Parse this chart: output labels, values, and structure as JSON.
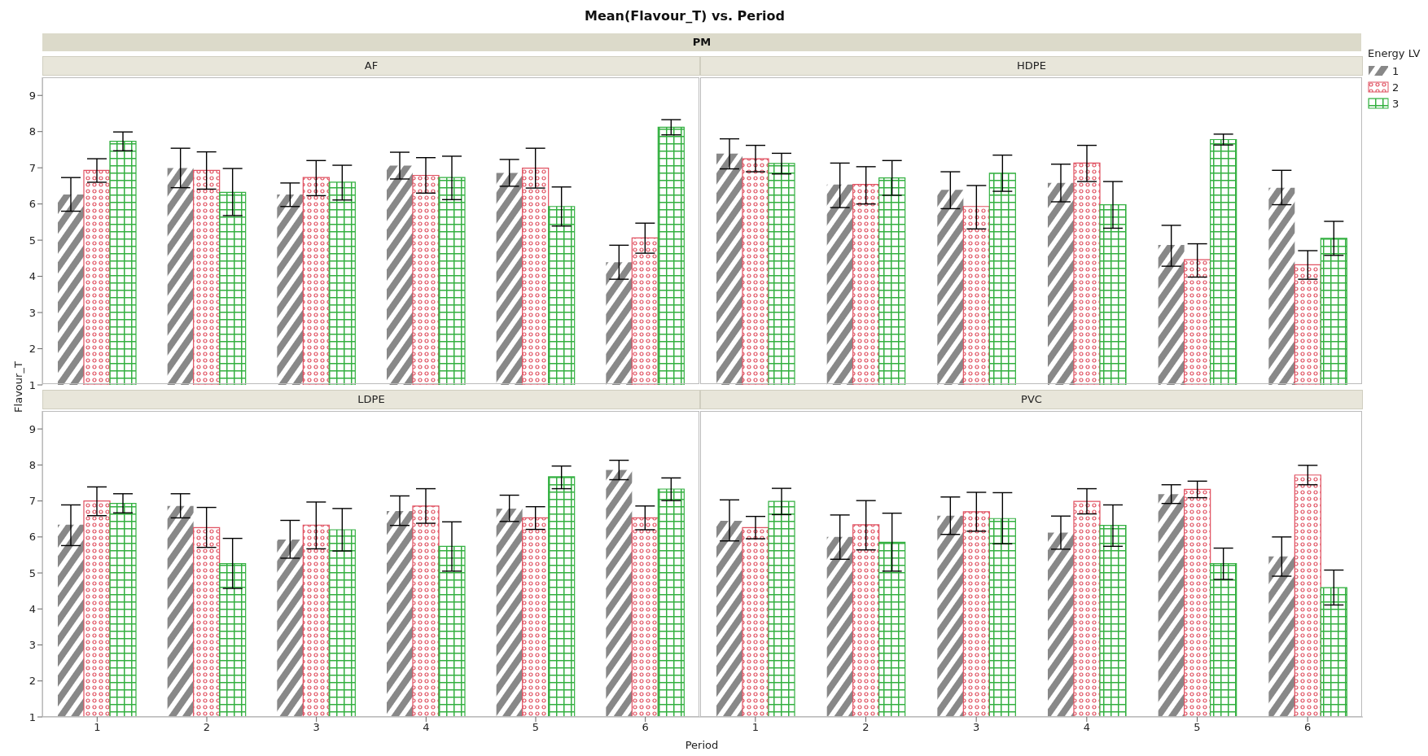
{
  "chart_data": [
    {
      "type": "bar",
      "title": "AF",
      "annotations": [
        "Mean(Flavour_T) vs. Period",
        "PM"
      ],
      "ylabel": "Flavour_T",
      "categories": [
        "1",
        "2",
        "3",
        "4",
        "5",
        "6"
      ],
      "ylim": [
        1,
        9.5
      ],
      "yticks": [
        1,
        2,
        3,
        4,
        5,
        6,
        7,
        8,
        9
      ],
      "tick_labels": "y",
      "series": [
        {
          "color": "#888888",
          "values": [
            6.26,
            6.99,
            6.26,
            7.06,
            6.86,
            4.39
          ],
          "errors": [
            [
              5.8,
              6.73
            ],
            [
              6.45,
              7.54
            ],
            [
              5.93,
              6.58
            ],
            [
              6.69,
              7.43
            ],
            [
              6.49,
              7.23
            ],
            [
              3.92,
              4.86
            ]
          ]
        },
        {
          "color": "#e05060",
          "values": [
            6.93,
            6.93,
            6.73,
            6.79,
            6.99,
            5.06
          ],
          "errors": [
            [
              6.6,
              7.25
            ],
            [
              6.41,
              7.44
            ],
            [
              6.23,
              7.2
            ],
            [
              6.3,
              7.28
            ],
            [
              6.44,
              7.54
            ],
            [
              4.64,
              5.47
            ]
          ]
        },
        {
          "color": "#33b040",
          "values": [
            7.73,
            6.32,
            6.6,
            6.73,
            5.93,
            8.12
          ],
          "errors": [
            [
              7.47,
              7.99
            ],
            [
              5.68,
              6.98
            ],
            [
              6.11,
              7.07
            ],
            [
              6.12,
              7.32
            ],
            [
              5.39,
              6.47
            ],
            [
              7.91,
              8.33
            ]
          ]
        }
      ]
    },
    {
      "type": "bar",
      "title": "HDPE",
      "legend": "right",
      "legend_title": "Energy LV",
      "categories": [
        "1",
        "2",
        "3",
        "4",
        "5",
        "6"
      ],
      "ylim": [
        1,
        9.5
      ],
      "yticks": [
        1,
        2,
        3,
        4,
        5,
        6,
        7,
        8,
        9
      ],
      "tick_labels": false,
      "series": [
        {
          "name": "1",
          "color": "#888888",
          "values": [
            7.39,
            6.54,
            6.39,
            6.58,
            4.87,
            6.45
          ],
          "errors": [
            [
              6.97,
              7.8
            ],
            [
              5.9,
              7.13
            ],
            [
              5.87,
              6.89
            ],
            [
              6.06,
              7.1
            ],
            [
              4.28,
              5.41
            ],
            [
              5.98,
              6.93
            ]
          ]
        },
        {
          "name": "2",
          "color": "#e05060",
          "values": [
            7.25,
            6.54,
            5.93,
            7.13,
            4.46,
            4.32
          ],
          "errors": [
            [
              6.89,
              7.62
            ],
            [
              6.0,
              7.03
            ],
            [
              5.31,
              6.51
            ],
            [
              6.62,
              7.62
            ],
            [
              3.98,
              4.9
            ],
            [
              3.92,
              4.71
            ]
          ]
        },
        {
          "name": "3",
          "color": "#33b040",
          "values": [
            7.12,
            6.72,
            6.85,
            5.98,
            7.78,
            5.05
          ],
          "errors": [
            [
              6.83,
              7.4
            ],
            [
              6.24,
              7.2
            ],
            [
              6.35,
              7.35
            ],
            [
              5.33,
              6.62
            ],
            [
              7.63,
              7.93
            ],
            [
              4.58,
              5.52
            ]
          ]
        }
      ]
    },
    {
      "type": "bar",
      "title": "LDPE",
      "xlabel": "Period",
      "categories": [
        "1",
        "2",
        "3",
        "4",
        "5",
        "6"
      ],
      "ylim": [
        1,
        9.5
      ],
      "yticks": [
        1,
        2,
        3,
        4,
        5,
        6,
        7,
        8,
        9
      ],
      "series": [
        {
          "color": "#888888",
          "values": [
            6.34,
            6.86,
            5.93,
            6.72,
            6.79,
            7.86
          ],
          "errors": [
            [
              5.76,
              6.89
            ],
            [
              6.53,
              7.2
            ],
            [
              5.41,
              6.46
            ],
            [
              6.32,
              7.14
            ],
            [
              6.43,
              7.16
            ],
            [
              7.59,
              8.13
            ]
          ]
        },
        {
          "color": "#e05060",
          "values": [
            7.0,
            6.26,
            6.33,
            6.86,
            6.53,
            6.53
          ],
          "errors": [
            [
              6.59,
              7.39
            ],
            [
              5.71,
              6.82
            ],
            [
              5.67,
              6.97
            ],
            [
              6.38,
              7.34
            ],
            [
              6.21,
              6.84
            ],
            [
              6.2,
              6.86
            ]
          ]
        },
        {
          "color": "#33b040",
          "values": [
            6.93,
            5.26,
            6.2,
            5.74,
            7.67,
            7.33
          ],
          "errors": [
            [
              6.67,
              7.2
            ],
            [
              4.57,
              5.96
            ],
            [
              5.61,
              6.79
            ],
            [
              5.05,
              6.42
            ],
            [
              7.34,
              7.97
            ],
            [
              7.01,
              7.64
            ]
          ]
        }
      ]
    },
    {
      "type": "bar",
      "title": "PVC",
      "categories": [
        "1",
        "2",
        "3",
        "4",
        "5",
        "6"
      ],
      "ylim": [
        1,
        9.5
      ],
      "yticks": [
        1,
        2,
        3,
        4,
        5,
        6,
        7,
        8,
        9
      ],
      "tick_labels": "x",
      "series": [
        {
          "color": "#888888",
          "values": [
            6.45,
            6.0,
            6.59,
            6.12,
            7.19,
            5.46
          ],
          "errors": [
            [
              5.89,
              7.03
            ],
            [
              5.38,
              6.61
            ],
            [
              6.07,
              7.11
            ],
            [
              5.66,
              6.58
            ],
            [
              6.93,
              7.45
            ],
            [
              4.91,
              6.0
            ]
          ]
        },
        {
          "color": "#e05060",
          "values": [
            6.26,
            6.34,
            6.7,
            6.99,
            7.32,
            7.72
          ],
          "errors": [
            [
              5.95,
              6.57
            ],
            [
              5.64,
              7.01
            ],
            [
              6.16,
              7.24
            ],
            [
              6.64,
              7.34
            ],
            [
              7.09,
              7.55
            ],
            [
              7.45,
              7.99
            ]
          ]
        },
        {
          "color": "#33b040",
          "values": [
            6.99,
            5.85,
            6.51,
            6.32,
            5.26,
            4.59
          ],
          "errors": [
            [
              6.62,
              7.35
            ],
            [
              5.05,
              6.66
            ],
            [
              5.81,
              7.23
            ],
            [
              5.74,
              6.89
            ],
            [
              4.82,
              5.69
            ],
            [
              4.11,
              5.08
            ]
          ]
        }
      ]
    }
  ]
}
